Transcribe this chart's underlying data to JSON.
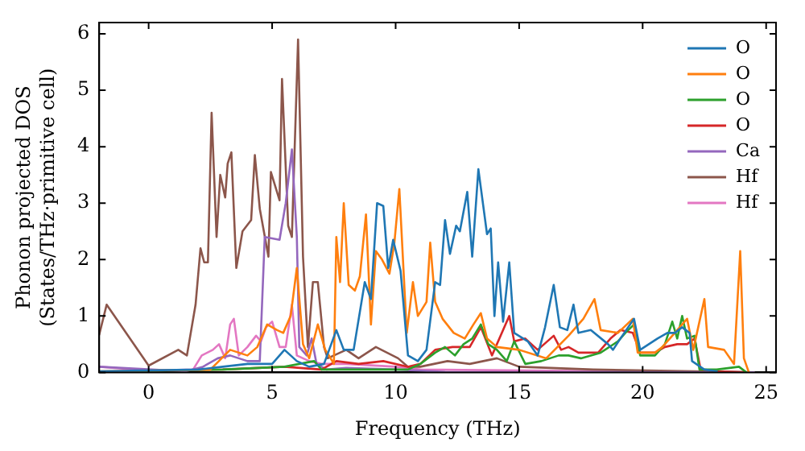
{
  "chart_data": {
    "type": "line",
    "xlabel": "Frequency (THz)",
    "ylabel": "Phonon projected DOS\n(States/THz·primitive cell)",
    "xlim": [
      -2,
      25.4
    ],
    "xticks": [
      0,
      5,
      10,
      15,
      20,
      25
    ],
    "ylim": [
      0,
      6.2
    ],
    "yticks": [
      0,
      1,
      2,
      3,
      4,
      5,
      6
    ],
    "grid": false,
    "legend": "top right",
    "line_style": "solid",
    "series": [
      {
        "name": "O",
        "color": "#1f77b4",
        "x": [
          -2,
          2,
          3,
          4,
          5,
          5.5,
          6,
          6.5,
          7.1,
          7.6,
          7.9,
          8.3,
          8.75,
          9.0,
          9.25,
          9.5,
          9.7,
          9.9,
          10.2,
          10.5,
          10.9,
          11.25,
          11.6,
          11.8,
          12.0,
          12.2,
          12.45,
          12.6,
          12.9,
          13.1,
          13.35,
          13.7,
          13.85,
          14.0,
          14.15,
          14.35,
          14.6,
          14.8,
          15.35,
          15.75,
          16.05,
          16.4,
          16.65,
          16.95,
          17.2,
          17.4,
          17.9,
          18.6,
          18.8,
          19.1,
          19.65,
          19.9,
          20.6,
          21.0,
          21.3,
          21.6,
          21.9,
          22.0,
          22.5,
          23
        ],
        "values": [
          0.02,
          0.05,
          0.1,
          0.15,
          0.15,
          0.4,
          0.2,
          0.1,
          0.15,
          0.75,
          0.4,
          0.4,
          1.6,
          1.3,
          3.0,
          2.95,
          1.85,
          2.35,
          1.8,
          0.3,
          0.2,
          0.4,
          1.6,
          1.55,
          2.7,
          2.1,
          2.6,
          2.5,
          3.2,
          2.05,
          3.6,
          2.45,
          2.55,
          1.0,
          1.95,
          0.9,
          1.95,
          0.7,
          0.55,
          0.3,
          0.8,
          1.55,
          0.8,
          0.75,
          1.2,
          0.7,
          0.75,
          0.5,
          0.4,
          0.6,
          0.95,
          0.4,
          0.6,
          0.7,
          0.7,
          0.8,
          0.7,
          0.2,
          0.05,
          0.02
        ]
      },
      {
        "name": "O",
        "color": "#ff7f0e",
        "x": [
          -2,
          2.5,
          3.3,
          4.0,
          4.4,
          4.8,
          5.2,
          5.45,
          5.75,
          6.0,
          6.25,
          6.5,
          6.85,
          7.15,
          7.3,
          7.5,
          7.6,
          7.75,
          7.9,
          8.1,
          8.35,
          8.55,
          8.8,
          9.0,
          9.2,
          9.45,
          9.75,
          9.95,
          10.15,
          10.45,
          10.7,
          10.9,
          11.25,
          11.4,
          11.6,
          11.9,
          12.35,
          12.8,
          13.15,
          13.45,
          13.7,
          14.1,
          15,
          16.1,
          17.0,
          17.6,
          18.05,
          18.3,
          19.0,
          19.6,
          19.8,
          20.5,
          20.8,
          21.4,
          21.8,
          22.05,
          22.5,
          22.65,
          23.3,
          23.7,
          23.95,
          24.1,
          24.3
        ],
        "values": [
          0.02,
          0.05,
          0.4,
          0.3,
          0.45,
          0.85,
          0.75,
          0.7,
          1.0,
          1.85,
          0.5,
          0.25,
          0.85,
          0.4,
          0.3,
          0.15,
          2.4,
          1.6,
          3.0,
          1.55,
          1.45,
          1.7,
          2.8,
          0.85,
          2.15,
          2.0,
          1.75,
          2.3,
          3.25,
          0.7,
          1.6,
          1.0,
          1.25,
          2.3,
          1.25,
          0.95,
          0.7,
          0.6,
          0.85,
          1.05,
          0.6,
          0.45,
          0.4,
          0.25,
          0.65,
          0.95,
          1.3,
          0.75,
          0.7,
          0.95,
          0.35,
          0.35,
          0.45,
          0.75,
          0.95,
          0.4,
          1.3,
          0.45,
          0.4,
          0.15,
          2.15,
          0.25,
          0
        ]
      },
      {
        "name": "O",
        "color": "#2ca02c",
        "x": [
          -2,
          3,
          5.5,
          6.7,
          7,
          8,
          10.5,
          11.0,
          11.6,
          12.0,
          12.4,
          12.75,
          13.1,
          13.45,
          13.75,
          14.1,
          14.5,
          14.8,
          15.25,
          15.9,
          16.6,
          17.0,
          17.5,
          18.3,
          19.0,
          19.3,
          19.65,
          19.9,
          20.5,
          20.9,
          21.2,
          21.4,
          21.6,
          21.8,
          22.1,
          22.3,
          23.0,
          23.9,
          24.2
        ],
        "values": [
          0.01,
          0.05,
          0.1,
          0.2,
          0.05,
          0.05,
          0.05,
          0.15,
          0.35,
          0.45,
          0.3,
          0.5,
          0.6,
          0.85,
          0.5,
          0.4,
          0.2,
          0.55,
          0.15,
          0.2,
          0.3,
          0.3,
          0.25,
          0.35,
          0.55,
          0.7,
          0.85,
          0.3,
          0.3,
          0.5,
          0.9,
          0.6,
          1.0,
          0.6,
          0.65,
          0.05,
          0.05,
          0.1,
          0
        ]
      },
      {
        "name": "O",
        "color": "#d62728",
        "x": [
          -2,
          3,
          5.5,
          7,
          7.6,
          8.5,
          9.5,
          10.5,
          11.0,
          11.6,
          12.3,
          13.0,
          13.45,
          13.9,
          14.6,
          14.8,
          15.25,
          15.75,
          16.4,
          16.7,
          17.0,
          17.4,
          18.2,
          18.7,
          19.1,
          19.6,
          19.9,
          20.5,
          20.9,
          21.4,
          21.8,
          22.1,
          22.35,
          23,
          24.2
        ],
        "values": [
          0.01,
          0.05,
          0.1,
          0.05,
          0.2,
          0.15,
          0.2,
          0.1,
          0.15,
          0.4,
          0.45,
          0.45,
          0.8,
          0.3,
          1.0,
          0.55,
          0.6,
          0.4,
          0.65,
          0.4,
          0.45,
          0.35,
          0.35,
          0.6,
          0.75,
          0.7,
          0.35,
          0.35,
          0.45,
          0.5,
          0.5,
          0.6,
          0.05,
          0.02,
          0
        ]
      },
      {
        "name": "Ca",
        "color": "#9467bd",
        "x": [
          -2,
          1.5,
          2.2,
          2.8,
          3.3,
          4.0,
          4.5,
          4.7,
          5.3,
          5.55,
          5.8,
          6.0,
          6.1,
          6.4,
          6.6,
          6.8,
          7.2,
          8,
          10,
          12,
          24.5
        ],
        "values": [
          0.1,
          0.02,
          0.1,
          0.25,
          0.3,
          0.2,
          0.2,
          2.4,
          2.35,
          3.0,
          3.95,
          2.4,
          0.45,
          0.3,
          0.6,
          0.15,
          0.05,
          0.08,
          0.05,
          0.01,
          0
        ]
      },
      {
        "name": "Hf",
        "color": "#8c564b",
        "x": [
          -2.0,
          -1.7,
          0,
          1.2,
          1.55,
          1.9,
          2.1,
          2.25,
          2.4,
          2.55,
          2.75,
          2.9,
          3.1,
          3.2,
          3.35,
          3.55,
          3.8,
          4.15,
          4.3,
          4.5,
          4.85,
          4.95,
          5.3,
          5.4,
          5.65,
          5.8,
          6.05,
          6.25,
          6.45,
          6.65,
          6.85,
          7.1,
          7.25,
          8.0,
          8.5,
          9.2,
          10.1,
          10.5,
          11,
          12.1,
          13,
          14.1,
          15,
          18,
          24.5
        ],
        "values": [
          0.67,
          1.2,
          0.12,
          0.4,
          0.3,
          1.2,
          2.2,
          1.95,
          1.95,
          4.6,
          2.4,
          3.5,
          3.1,
          3.7,
          3.9,
          1.85,
          2.5,
          2.7,
          3.85,
          2.9,
          2.05,
          3.55,
          3.05,
          5.2,
          2.6,
          2.4,
          5.9,
          2.05,
          0.45,
          1.6,
          1.6,
          0.45,
          0.25,
          0.4,
          0.25,
          0.45,
          0.25,
          0.1,
          0.1,
          0.2,
          0.15,
          0.25,
          0.1,
          0.05,
          0
        ]
      },
      {
        "name": "Hf",
        "color": "#e377c2",
        "x": [
          -2,
          0,
          1.8,
          2.15,
          2.6,
          2.85,
          3.1,
          3.3,
          3.45,
          3.65,
          4.0,
          4.35,
          4.55,
          4.75,
          5.0,
          5.3,
          5.55,
          5.8,
          6.0,
          6.5,
          7,
          8,
          10,
          11,
          24.5
        ],
        "values": [
          0.1,
          0.03,
          0.05,
          0.3,
          0.4,
          0.5,
          0.25,
          0.85,
          0.95,
          0.3,
          0.45,
          0.65,
          0.55,
          0.8,
          0.9,
          0.45,
          0.45,
          1.2,
          0.3,
          0.2,
          0.15,
          0.15,
          0.1,
          0.05,
          0
        ]
      }
    ]
  }
}
